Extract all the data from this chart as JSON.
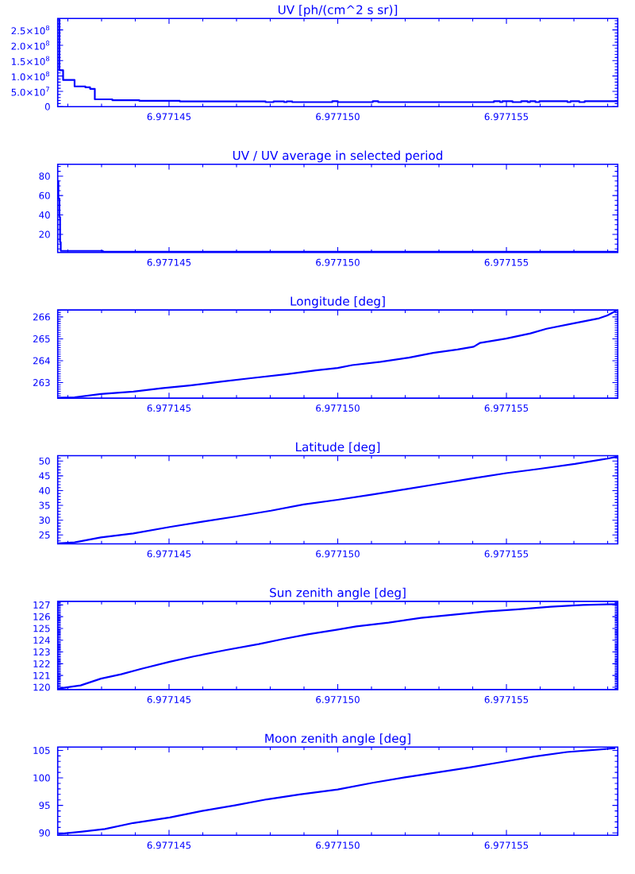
{
  "chart_data": [
    {
      "type": "step",
      "title": "UV [ph/(cm^2 s sr)]",
      "color": "#0000ff",
      "x": [
        6.9771417,
        6.97714175,
        6.97714186,
        6.9771422,
        6.97714252,
        6.97714266,
        6.9771428,
        6.97714332,
        6.97714412,
        6.97714532,
        6.97714786,
        6.9771481,
        6.97714841,
        6.97714849,
        6.97714865,
        6.97714984,
        6.97715,
        6.97715104,
        6.9771512,
        6.97715463,
        6.97715481,
        6.97715488,
        6.97715518,
        6.97715544,
        6.97715563,
        6.9771557,
        6.97715586,
        6.97715598,
        6.97715681,
        6.9771569,
        6.97715716,
        6.97715732,
        6.9771583
      ],
      "values": [
        287000000,
        119000000,
        87000000,
        66000000,
        63000000,
        58000000,
        24000000,
        21000000,
        19000000,
        17000000,
        15000000,
        17000000,
        15000000,
        17000000,
        15000000,
        18000000,
        15000000,
        18000000,
        15000000,
        18000000,
        15000000,
        18000000,
        15000000,
        18000000,
        15000000,
        18000000,
        15000000,
        18000000,
        15000000,
        18000000,
        15000000,
        18000000,
        18000000
      ],
      "xlim": [
        6.9771417,
        6.9771583
      ],
      "ylim": [
        0,
        287000000
      ],
      "xticks": [
        {
          "value": 6.977142,
          "label": null
        },
        {
          "value": 6.977143,
          "label": null
        },
        {
          "value": 6.977144,
          "label": null
        },
        {
          "value": 6.977145,
          "label": "6.977145"
        },
        {
          "value": 6.977146,
          "label": null
        },
        {
          "value": 6.977147,
          "label": null
        },
        {
          "value": 6.977148,
          "label": null
        },
        {
          "value": 6.977149,
          "label": null
        },
        {
          "value": 6.97715,
          "label": "6.977150"
        },
        {
          "value": 6.977151,
          "label": null
        },
        {
          "value": 6.977152,
          "label": null
        },
        {
          "value": 6.977153,
          "label": null
        },
        {
          "value": 6.977154,
          "label": null
        },
        {
          "value": 6.977155,
          "label": "6.977155"
        },
        {
          "value": 6.977156,
          "label": null
        },
        {
          "value": 6.977157,
          "label": null
        },
        {
          "value": 6.977158,
          "label": null
        }
      ],
      "yticks": [
        0,
        {
          "value": 50000000,
          "label": "5.0×10$^{7}$"
        },
        {
          "value": 100000000,
          "label": "1.0×10$^{8}$"
        },
        {
          "value": 150000000,
          "label": "1.5×10$^{8}$"
        },
        {
          "value": 200000000,
          "label": "2.0×10$^{8}$"
        },
        {
          "value": 250000000,
          "label": "2.5×10$^{8}$"
        },
        {
          "value": 10000000,
          "label": null
        },
        {
          "value": 20000000,
          "label": null
        },
        {
          "value": 30000000,
          "label": null
        },
        {
          "value": 40000000,
          "label": null
        },
        {
          "value": 60000000,
          "label": null
        },
        {
          "value": 70000000,
          "label": null
        },
        {
          "value": 80000000,
          "label": null
        },
        {
          "value": 90000000,
          "label": null
        },
        {
          "value": 110000000,
          "label": null
        },
        {
          "value": 120000000,
          "label": null
        },
        {
          "value": 130000000,
          "label": null
        },
        {
          "value": 140000000,
          "label": null
        },
        {
          "value": 160000000,
          "label": null
        },
        {
          "value": 170000000,
          "label": null
        },
        {
          "value": 180000000,
          "label": null
        },
        {
          "value": 190000000,
          "label": null
        },
        {
          "value": 210000000,
          "label": null
        },
        {
          "value": 220000000,
          "label": null
        },
        {
          "value": 230000000,
          "label": null
        },
        {
          "value": 240000000,
          "label": null
        },
        {
          "value": 260000000,
          "label": null
        },
        {
          "value": 270000000,
          "label": null
        },
        {
          "value": 280000000,
          "label": null
        }
      ]
    },
    {
      "type": "step",
      "title": "UV / UV average in selected period",
      "color": "#0000ff",
      "x": [
        6.9771417,
        6.97714172,
        6.97714175,
        6.97714177,
        6.97714179,
        6.97714304,
        6.9771583
      ],
      "values": [
        75,
        57,
        38,
        12,
        3,
        2,
        2
      ],
      "xlim": [
        6.9771417,
        6.9771583
      ],
      "ylim": [
        1.4,
        92.3
      ],
      "xticks": [
        {
          "value": 6.977142,
          "label": null
        },
        {
          "value": 6.977143,
          "label": null
        },
        {
          "value": 6.977144,
          "label": null
        },
        {
          "value": 6.977145,
          "label": "6.977145"
        },
        {
          "value": 6.977146,
          "label": null
        },
        {
          "value": 6.977147,
          "label": null
        },
        {
          "value": 6.977148,
          "label": null
        },
        {
          "value": 6.977149,
          "label": null
        },
        {
          "value": 6.97715,
          "label": "6.977150"
        },
        {
          "value": 6.977151,
          "label": null
        },
        {
          "value": 6.977152,
          "label": null
        },
        {
          "value": 6.977153,
          "label": null
        },
        {
          "value": 6.977154,
          "label": null
        },
        {
          "value": 6.977155,
          "label": "6.977155"
        },
        {
          "value": 6.977156,
          "label": null
        },
        {
          "value": 6.977157,
          "label": null
        },
        {
          "value": 6.977158,
          "label": null
        }
      ],
      "yticks": [
        20,
        40,
        60,
        80,
        {
          "value": 5,
          "label": null
        },
        {
          "value": 10,
          "label": null
        },
        {
          "value": 15,
          "label": null
        },
        {
          "value": 25,
          "label": null
        },
        {
          "value": 30,
          "label": null
        },
        {
          "value": 35,
          "label": null
        },
        {
          "value": 45,
          "label": null
        },
        {
          "value": 50,
          "label": null
        },
        {
          "value": 55,
          "label": null
        },
        {
          "value": 65,
          "label": null
        },
        {
          "value": 70,
          "label": null
        },
        {
          "value": 75,
          "label": null
        },
        {
          "value": 85,
          "label": null
        },
        {
          "value": 90,
          "label": null
        }
      ]
    },
    {
      "type": "line",
      "title": "Longitude [deg]",
      "color": "#0000ff",
      "x": [
        6.97714172,
        6.9771422,
        6.97714298,
        6.97714394,
        6.97714478,
        6.97714562,
        6.97714658,
        6.97714742,
        6.9771485,
        6.97714935,
        6.97715,
        6.97715043,
        6.97715127,
        6.97715211,
        6.97715283,
        6.97715355,
        6.97715403,
        6.97715421,
        6.97715499,
        6.97715571,
        6.97715619,
        6.97715703,
        6.97715775,
        6.97715799,
        6.9771583
      ],
      "values": [
        262.31,
        262.33,
        262.48,
        262.59,
        262.74,
        262.87,
        263.05,
        263.2,
        263.39,
        263.56,
        263.67,
        263.8,
        263.95,
        264.14,
        264.36,
        264.51,
        264.64,
        264.81,
        265.01,
        265.25,
        265.46,
        265.72,
        265.94,
        266.07,
        266.32
      ],
      "xlim": [
        6.9771417,
        6.9771583
      ],
      "ylim": [
        262.29,
        266.32
      ],
      "xticks": [
        {
          "value": 6.977142,
          "label": null
        },
        {
          "value": 6.977143,
          "label": null
        },
        {
          "value": 6.977144,
          "label": null
        },
        {
          "value": 6.977145,
          "label": "6.977145"
        },
        {
          "value": 6.977146,
          "label": null
        },
        {
          "value": 6.977147,
          "label": null
        },
        {
          "value": 6.977148,
          "label": null
        },
        {
          "value": 6.977149,
          "label": null
        },
        {
          "value": 6.97715,
          "label": "6.977150"
        },
        {
          "value": 6.977151,
          "label": null
        },
        {
          "value": 6.977152,
          "label": null
        },
        {
          "value": 6.977153,
          "label": null
        },
        {
          "value": 6.977154,
          "label": null
        },
        {
          "value": 6.977155,
          "label": "6.977155"
        },
        {
          "value": 6.977156,
          "label": null
        },
        {
          "value": 6.977157,
          "label": null
        },
        {
          "value": 6.977158,
          "label": null
        }
      ],
      "yticks": [
        263,
        264,
        265,
        266,
        {
          "value": 262.3,
          "label": null
        },
        {
          "value": 262.4,
          "label": null
        },
        {
          "value": 262.5,
          "label": null
        },
        {
          "value": 262.6,
          "label": null
        },
        {
          "value": 262.7,
          "label": null
        },
        {
          "value": 262.8,
          "label": null
        },
        {
          "value": 262.9,
          "label": null
        },
        {
          "value": 263.1,
          "label": null
        },
        {
          "value": 263.2,
          "label": null
        },
        {
          "value": 263.3,
          "label": null
        },
        {
          "value": 263.4,
          "label": null
        },
        {
          "value": 263.5,
          "label": null
        },
        {
          "value": 263.6,
          "label": null
        },
        {
          "value": 263.7,
          "label": null
        },
        {
          "value": 263.8,
          "label": null
        },
        {
          "value": 263.9,
          "label": null
        },
        {
          "value": 264.1,
          "label": null
        },
        {
          "value": 264.2,
          "label": null
        },
        {
          "value": 264.3,
          "label": null
        },
        {
          "value": 264.4,
          "label": null
        },
        {
          "value": 264.5,
          "label": null
        },
        {
          "value": 264.6,
          "label": null
        },
        {
          "value": 264.7,
          "label": null
        },
        {
          "value": 264.8,
          "label": null
        },
        {
          "value": 264.9,
          "label": null
        },
        {
          "value": 265.1,
          "label": null
        },
        {
          "value": 265.2,
          "label": null
        },
        {
          "value": 265.3,
          "label": null
        },
        {
          "value": 265.4,
          "label": null
        },
        {
          "value": 265.5,
          "label": null
        },
        {
          "value": 265.6,
          "label": null
        },
        {
          "value": 265.7,
          "label": null
        },
        {
          "value": 265.8,
          "label": null
        },
        {
          "value": 265.9,
          "label": null
        },
        {
          "value": 266.1,
          "label": null
        },
        {
          "value": 266.2,
          "label": null
        },
        {
          "value": 266.3,
          "label": null
        }
      ]
    },
    {
      "type": "line",
      "title": "Latitude [deg]",
      "color": "#0000ff",
      "x": [
        6.97714172,
        6.9771422,
        6.97714298,
        6.97714394,
        6.97714502,
        6.97714598,
        6.97714695,
        6.97714802,
        6.97714899,
        6.97715,
        6.97715103,
        6.97715199,
        6.97715295,
        6.97715403,
        6.97715499,
        6.97715595,
        6.97715703,
        6.97715799,
        6.9771583
      ],
      "values": [
        22.2,
        22.5,
        24.2,
        25.5,
        27.7,
        29.5,
        31.2,
        33.2,
        35.3,
        36.9,
        38.7,
        40.4,
        42.2,
        44.2,
        45.9,
        47.3,
        49.0,
        50.8,
        51.5
      ],
      "xlim": [
        6.9771417,
        6.9771583
      ],
      "ylim": [
        22.0,
        51.8
      ],
      "xticks": [
        {
          "value": 6.977142,
          "label": null
        },
        {
          "value": 6.977143,
          "label": null
        },
        {
          "value": 6.977144,
          "label": null
        },
        {
          "value": 6.977145,
          "label": "6.977145"
        },
        {
          "value": 6.977146,
          "label": null
        },
        {
          "value": 6.977147,
          "label": null
        },
        {
          "value": 6.977148,
          "label": null
        },
        {
          "value": 6.977149,
          "label": null
        },
        {
          "value": 6.97715,
          "label": "6.977150"
        },
        {
          "value": 6.977151,
          "label": null
        },
        {
          "value": 6.977152,
          "label": null
        },
        {
          "value": 6.977153,
          "label": null
        },
        {
          "value": 6.977154,
          "label": null
        },
        {
          "value": 6.977155,
          "label": "6.977155"
        },
        {
          "value": 6.977156,
          "label": null
        },
        {
          "value": 6.977157,
          "label": null
        },
        {
          "value": 6.977158,
          "label": null
        }
      ],
      "yticks": [
        25,
        30,
        35,
        40,
        45,
        50,
        {
          "value": 23,
          "label": null
        },
        {
          "value": 24,
          "label": null
        },
        {
          "value": 26,
          "label": null
        },
        {
          "value": 27,
          "label": null
        },
        {
          "value": 28,
          "label": null
        },
        {
          "value": 29,
          "label": null
        },
        {
          "value": 31,
          "label": null
        },
        {
          "value": 32,
          "label": null
        },
        {
          "value": 33,
          "label": null
        },
        {
          "value": 34,
          "label": null
        },
        {
          "value": 36,
          "label": null
        },
        {
          "value": 37,
          "label": null
        },
        {
          "value": 38,
          "label": null
        },
        {
          "value": 39,
          "label": null
        },
        {
          "value": 41,
          "label": null
        },
        {
          "value": 42,
          "label": null
        },
        {
          "value": 43,
          "label": null
        },
        {
          "value": 44,
          "label": null
        },
        {
          "value": 46,
          "label": null
        },
        {
          "value": 47,
          "label": null
        },
        {
          "value": 48,
          "label": null
        },
        {
          "value": 49,
          "label": null
        },
        {
          "value": 51,
          "label": null
        }
      ]
    },
    {
      "type": "line",
      "title": "Sun zenith angle [deg]",
      "color": "#0000ff",
      "x": [
        6.97714176,
        6.97714238,
        6.97714298,
        6.97714358,
        6.97714418,
        6.97714502,
        6.97714575,
        6.9771467,
        6.97714766,
        6.97714838,
        6.97714911,
        6.97715,
        6.97715055,
        6.97715151,
        6.97715247,
        6.97715343,
        6.97715439,
        6.97715535,
        6.97715631,
        6.97715727,
        6.9771583
      ],
      "values": [
        119.9,
        120.16,
        120.73,
        121.1,
        121.57,
        122.17,
        122.63,
        123.17,
        123.67,
        124.1,
        124.5,
        124.9,
        125.17,
        125.5,
        125.9,
        126.17,
        126.44,
        126.63,
        126.84,
        127.0,
        127.07
      ],
      "xlim": [
        6.9771417,
        6.9771583
      ],
      "ylim": [
        119.8,
        127.3
      ],
      "xticks": [
        {
          "value": 6.977142,
          "label": null
        },
        {
          "value": 6.977143,
          "label": null
        },
        {
          "value": 6.977144,
          "label": null
        },
        {
          "value": 6.977145,
          "label": "6.977145"
        },
        {
          "value": 6.977146,
          "label": null
        },
        {
          "value": 6.977147,
          "label": null
        },
        {
          "value": 6.977148,
          "label": null
        },
        {
          "value": 6.977149,
          "label": null
        },
        {
          "value": 6.97715,
          "label": "6.977150"
        },
        {
          "value": 6.977151,
          "label": null
        },
        {
          "value": 6.977152,
          "label": null
        },
        {
          "value": 6.977153,
          "label": null
        },
        {
          "value": 6.977154,
          "label": null
        },
        {
          "value": 6.977155,
          "label": "6.977155"
        },
        {
          "value": 6.977156,
          "label": null
        },
        {
          "value": 6.977157,
          "label": null
        },
        {
          "value": 6.977158,
          "label": null
        }
      ],
      "yticks": [
        120,
        121,
        122,
        123,
        124,
        125,
        126,
        127,
        {
          "value": 119.9,
          "label": null
        },
        {
          "value": 120.1,
          "label": null
        },
        {
          "value": 120.2,
          "label": null
        },
        {
          "value": 120.3,
          "label": null
        },
        {
          "value": 120.4,
          "label": null
        },
        {
          "value": 120.5,
          "label": null
        },
        {
          "value": 120.6,
          "label": null
        },
        {
          "value": 120.7,
          "label": null
        },
        {
          "value": 120.8,
          "label": null
        },
        {
          "value": 120.9,
          "label": null
        },
        {
          "value": 121.1,
          "label": null
        },
        {
          "value": 121.2,
          "label": null
        },
        {
          "value": 121.3,
          "label": null
        },
        {
          "value": 121.4,
          "label": null
        },
        {
          "value": 121.5,
          "label": null
        },
        {
          "value": 121.6,
          "label": null
        },
        {
          "value": 121.7,
          "label": null
        },
        {
          "value": 121.8,
          "label": null
        },
        {
          "value": 121.9,
          "label": null
        },
        {
          "value": 122.1,
          "label": null
        },
        {
          "value": 122.2,
          "label": null
        },
        {
          "value": 122.3,
          "label": null
        },
        {
          "value": 122.4,
          "label": null
        },
        {
          "value": 122.5,
          "label": null
        },
        {
          "value": 122.6,
          "label": null
        },
        {
          "value": 122.7,
          "label": null
        },
        {
          "value": 122.8,
          "label": null
        },
        {
          "value": 122.9,
          "label": null
        },
        {
          "value": 123.1,
          "label": null
        },
        {
          "value": 123.2,
          "label": null
        },
        {
          "value": 123.3,
          "label": null
        },
        {
          "value": 123.4,
          "label": null
        },
        {
          "value": 123.5,
          "label": null
        },
        {
          "value": 123.6,
          "label": null
        },
        {
          "value": 123.7,
          "label": null
        },
        {
          "value": 123.8,
          "label": null
        },
        {
          "value": 123.9,
          "label": null
        },
        {
          "value": 124.1,
          "label": null
        },
        {
          "value": 124.2,
          "label": null
        },
        {
          "value": 124.3,
          "label": null
        },
        {
          "value": 124.4,
          "label": null
        },
        {
          "value": 124.5,
          "label": null
        },
        {
          "value": 124.6,
          "label": null
        },
        {
          "value": 124.7,
          "label": null
        },
        {
          "value": 124.8,
          "label": null
        },
        {
          "value": 124.9,
          "label": null
        },
        {
          "value": 125.1,
          "label": null
        },
        {
          "value": 125.2,
          "label": null
        },
        {
          "value": 125.3,
          "label": null
        },
        {
          "value": 125.4,
          "label": null
        },
        {
          "value": 125.5,
          "label": null
        },
        {
          "value": 125.6,
          "label": null
        },
        {
          "value": 125.7,
          "label": null
        },
        {
          "value": 125.8,
          "label": null
        },
        {
          "value": 125.9,
          "label": null
        },
        {
          "value": 126.1,
          "label": null
        },
        {
          "value": 126.2,
          "label": null
        },
        {
          "value": 126.3,
          "label": null
        },
        {
          "value": 126.4,
          "label": null
        },
        {
          "value": 126.5,
          "label": null
        },
        {
          "value": 126.6,
          "label": null
        },
        {
          "value": 126.7,
          "label": null
        },
        {
          "value": 126.8,
          "label": null
        },
        {
          "value": 126.9,
          "label": null
        },
        {
          "value": 127.1,
          "label": null
        },
        {
          "value": 127.2,
          "label": null
        }
      ]
    },
    {
      "type": "line",
      "title": "Moon zenith angle [deg]",
      "color": "#0000ff",
      "x": [
        6.97714172,
        6.97714238,
        6.9771431,
        6.97714394,
        6.97714502,
        6.97714598,
        6.97714695,
        6.9771479,
        6.97714887,
        6.97715,
        6.97715103,
        6.97715199,
        6.97715295,
        6.97715391,
        6.97715487,
        6.97715583,
        6.97715679,
        6.97715823
      ],
      "values": [
        89.8,
        90.2,
        90.7,
        91.8,
        92.8,
        94.0,
        95.0,
        96.1,
        97.0,
        97.9,
        99.1,
        100.1,
        101.0,
        101.9,
        102.9,
        103.9,
        104.7,
        105.4
      ],
      "xlim": [
        6.9771417,
        6.9771583
      ],
      "ylim": [
        89.56,
        105.6
      ],
      "xticks": [
        {
          "value": 6.977142,
          "label": null
        },
        {
          "value": 6.977143,
          "label": null
        },
        {
          "value": 6.977144,
          "label": null
        },
        {
          "value": 6.977145,
          "label": "6.977145"
        },
        {
          "value": 6.977146,
          "label": null
        },
        {
          "value": 6.977147,
          "label": null
        },
        {
          "value": 6.977148,
          "label": null
        },
        {
          "value": 6.977149,
          "label": null
        },
        {
          "value": 6.97715,
          "label": "6.977150"
        },
        {
          "value": 6.977151,
          "label": null
        },
        {
          "value": 6.977152,
          "label": null
        },
        {
          "value": 6.977153,
          "label": null
        },
        {
          "value": 6.977154,
          "label": null
        },
        {
          "value": 6.977155,
          "label": "6.977155"
        },
        {
          "value": 6.977156,
          "label": null
        },
        {
          "value": 6.977157,
          "label": null
        },
        {
          "value": 6.977158,
          "label": null
        }
      ],
      "yticks": [
        90,
        95,
        100,
        105,
        {
          "value": 91,
          "label": null
        },
        {
          "value": 92,
          "label": null
        },
        {
          "value": 93,
          "label": null
        },
        {
          "value": 94,
          "label": null
        },
        {
          "value": 96,
          "label": null
        },
        {
          "value": 97,
          "label": null
        },
        {
          "value": 98,
          "label": null
        },
        {
          "value": 99,
          "label": null
        },
        {
          "value": 101,
          "label": null
        },
        {
          "value": 102,
          "label": null
        },
        {
          "value": 103,
          "label": null
        },
        {
          "value": 104,
          "label": null
        }
      ]
    }
  ]
}
